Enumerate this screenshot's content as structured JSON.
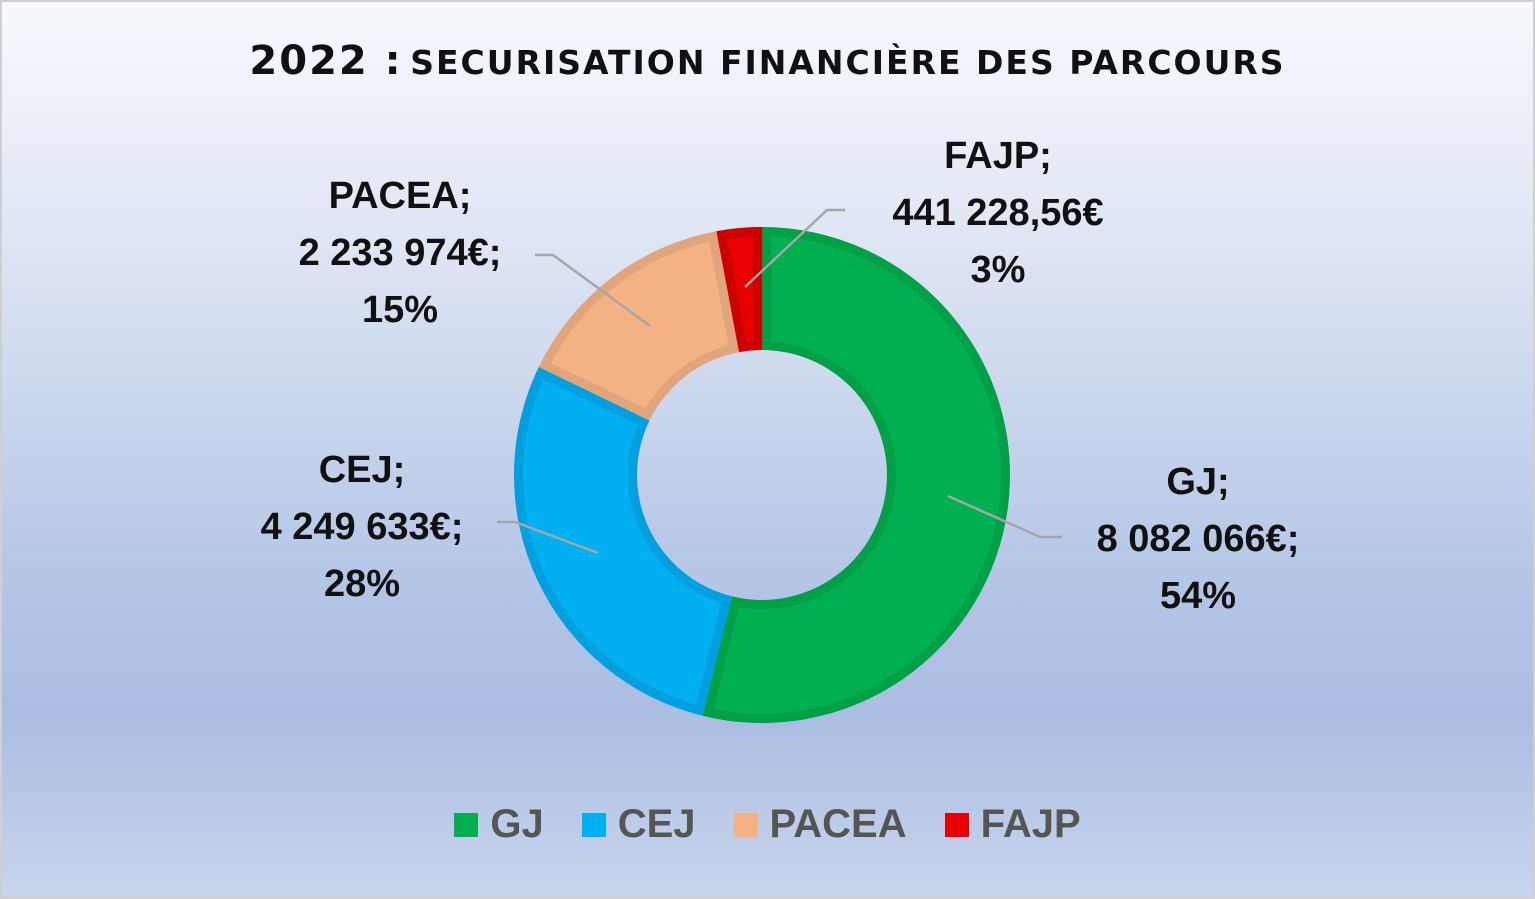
{
  "title": {
    "year": "2022 :",
    "rest": "SECURISATION FINANCIÈRE DES PARCOURS"
  },
  "chart_data": {
    "type": "pie",
    "variant": "donut",
    "title": "2022 : SECURISATION FINANCIÈRE DES PARCOURS",
    "categories": [
      "GJ",
      "CEJ",
      "PACEA",
      "FAJP"
    ],
    "values": [
      8082066,
      4249633,
      2233974,
      441228.56
    ],
    "percents": [
      54,
      28,
      15,
      3
    ],
    "labels": [
      [
        "GJ;",
        "8 082 066€;",
        "54%"
      ],
      [
        "CEJ;",
        "4 249 633€;",
        "28%"
      ],
      [
        "PACEA;",
        "2 233 974€;",
        "15%"
      ],
      [
        "FAJP;",
        "441 228,56€",
        "3%"
      ]
    ],
    "colors": [
      "#00b050",
      "#00b0f0",
      "#f4b183",
      "#e80000"
    ],
    "border_colors": [
      "#00a047",
      "#00a0e0",
      "#e0a57c",
      "#cc0000"
    ],
    "legend": {
      "position": "bottom",
      "items": [
        "GJ",
        "CEJ",
        "PACEA",
        "FAJP"
      ]
    }
  }
}
